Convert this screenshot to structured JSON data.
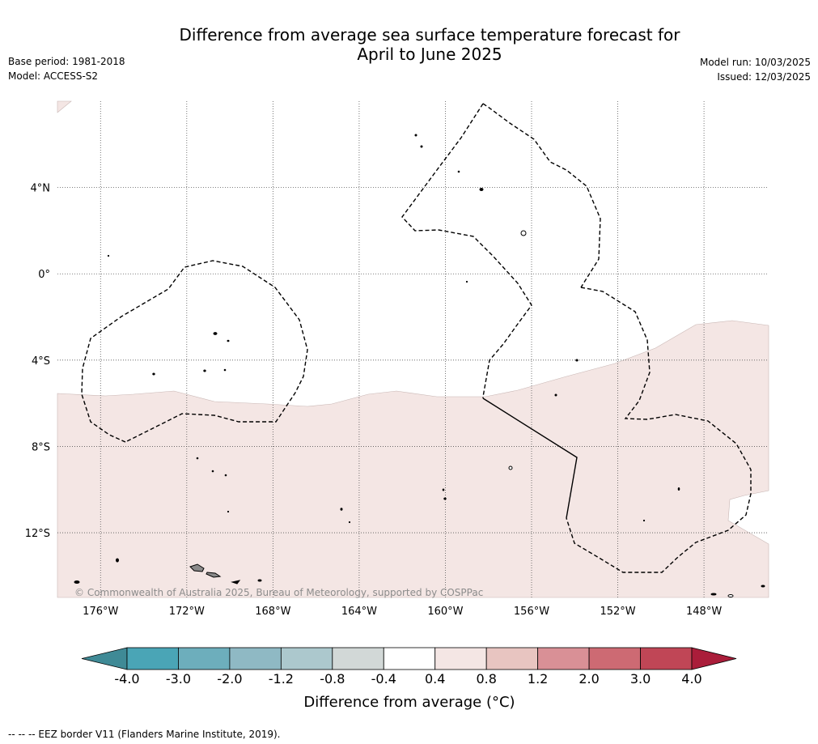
{
  "title": {
    "line1": "Difference from average sea surface temperature forecast for",
    "line2": "April to June 2025"
  },
  "meta_left": {
    "base_period": "Base period: 1981-2018",
    "model": "Model: ACCESS-S2"
  },
  "meta_right": {
    "model_run": "Model run: 10/03/2025",
    "issued": "Issued: 12/03/2025"
  },
  "map": {
    "lon_range": [
      -178.0,
      -145.0
    ],
    "lat_range": [
      -15.0,
      8.0
    ],
    "lon_ticks": [
      {
        "value": -176,
        "label": "176°W"
      },
      {
        "value": -172,
        "label": "172°W"
      },
      {
        "value": -168,
        "label": "168°W"
      },
      {
        "value": -164,
        "label": "164°W"
      },
      {
        "value": -160,
        "label": "160°W"
      },
      {
        "value": -156,
        "label": "156°W"
      },
      {
        "value": -152,
        "label": "152°W"
      },
      {
        "value": -148,
        "label": "148°W"
      }
    ],
    "lat_ticks": [
      {
        "value": 4,
        "label": "4°N"
      },
      {
        "value": 0,
        "label": "0°"
      },
      {
        "value": -4,
        "label": "4°S"
      },
      {
        "value": -8,
        "label": "8°S"
      },
      {
        "value": -12,
        "label": "12°S"
      }
    ],
    "gridlines": true,
    "anomaly_fill_color": "#f4e6e4",
    "land_color": "#8a8a8a",
    "copyright": "© Commonwealth of Australia 2025, Bureau of Meteorology, supported by COSPPac"
  },
  "colorbar": {
    "title": "Difference from average (°C)",
    "ticks": [
      "-4.0",
      "-3.0",
      "-2.0",
      "-1.2",
      "-0.8",
      "-0.4",
      "0.4",
      "0.8",
      "1.2",
      "2.0",
      "3.0",
      "4.0"
    ],
    "colors": [
      "#3f8a96",
      "#4aa5b6",
      "#6daebc",
      "#8fb9c4",
      "#acc8cd",
      "#d2d8d7",
      "#ffffff",
      "#f4e6e4",
      "#e8c5c1",
      "#d99096",
      "#cd6a73",
      "#c04656",
      "#aa1d3a"
    ]
  },
  "footnote": "--  --  -- EEZ border V11 (Flanders Marine Institute, 2019)."
}
